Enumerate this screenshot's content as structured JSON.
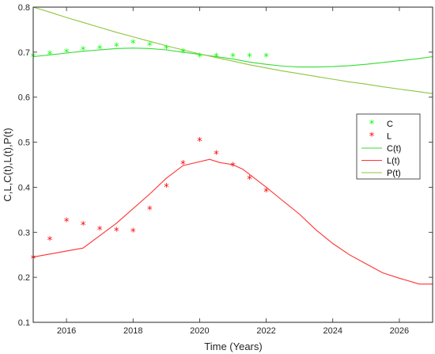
{
  "chart_data": {
    "type": "line",
    "title": "",
    "xlabel": "Time (Years)",
    "ylabel": "C,L,C(t),L(t),P(t)",
    "xlim": [
      2015,
      2027
    ],
    "ylim": [
      0.1,
      0.8
    ],
    "xticks": [
      2016,
      2018,
      2020,
      2022,
      2024,
      2026
    ],
    "yticks": [
      0.1,
      0.2,
      0.3,
      0.4,
      0.5,
      0.6,
      0.7,
      0.8
    ],
    "grid": false,
    "legend_position": "right",
    "series": [
      {
        "name": "C",
        "kind": "scatter",
        "marker": "*",
        "color": "#00ff00",
        "x": [
          2015,
          2015.5,
          2016,
          2016.5,
          2017,
          2017.5,
          2018,
          2018.5,
          2019,
          2019.5,
          2020,
          2020.5,
          2021,
          2021.5,
          2022
        ],
        "y": [
          0.69,
          0.695,
          0.7,
          0.705,
          0.708,
          0.713,
          0.72,
          0.715,
          0.708,
          0.7,
          0.69,
          0.69,
          0.69,
          0.69,
          0.69
        ]
      },
      {
        "name": "L",
        "kind": "scatter",
        "marker": "*",
        "color": "#ff0000",
        "x": [
          2015,
          2015.5,
          2016,
          2016.5,
          2017,
          2017.5,
          2018,
          2018.5,
          2019,
          2019.5,
          2020,
          2020.5,
          2021,
          2021.5,
          2022
        ],
        "y": [
          0.242,
          0.283,
          0.324,
          0.316,
          0.306,
          0.303,
          0.301,
          0.351,
          0.401,
          0.452,
          0.503,
          0.474,
          0.447,
          0.418,
          0.39
        ]
      },
      {
        "name": "C(t)",
        "kind": "line",
        "color": "#33dd33",
        "x": [
          2015,
          2015.5,
          2016,
          2016.5,
          2017,
          2017.5,
          2018,
          2018.5,
          2019,
          2019.5,
          2020,
          2020.5,
          2021,
          2021.5,
          2022,
          2022.5,
          2023,
          2023.5,
          2024,
          2024.5,
          2025,
          2025.5,
          2026,
          2026.5,
          2027
        ],
        "y": [
          0.69,
          0.694,
          0.698,
          0.702,
          0.705,
          0.708,
          0.709,
          0.708,
          0.705,
          0.7,
          0.695,
          0.69,
          0.685,
          0.678,
          0.673,
          0.669,
          0.667,
          0.667,
          0.668,
          0.67,
          0.673,
          0.677,
          0.681,
          0.685,
          0.69
        ]
      },
      {
        "name": "L(t)",
        "kind": "line",
        "color": "#ff3333",
        "x": [
          2015,
          2016.5,
          2017.5,
          2018.5,
          2019,
          2019.5,
          2020.3,
          2020.6,
          2021,
          2021.3,
          2022,
          2022.5,
          2023,
          2023.5,
          2024,
          2024.5,
          2025,
          2025.5,
          2026,
          2026.6,
          2027
        ],
        "y": [
          0.245,
          0.265,
          0.32,
          0.385,
          0.42,
          0.448,
          0.462,
          0.455,
          0.45,
          0.44,
          0.4,
          0.37,
          0.34,
          0.305,
          0.275,
          0.25,
          0.23,
          0.21,
          0.198,
          0.185,
          0.185
        ]
      },
      {
        "name": "P(t)",
        "kind": "line",
        "color": "#8ec63f",
        "x": [
          2015,
          2015.5,
          2016,
          2016.5,
          2017,
          2017.5,
          2018,
          2018.5,
          2019,
          2019.5,
          2020,
          2020.5,
          2021,
          2021.5,
          2022,
          2022.5,
          2023,
          2023.5,
          2024,
          2024.5,
          2025,
          2025.5,
          2026,
          2026.5,
          2027
        ],
        "y": [
          0.8,
          0.789,
          0.777,
          0.766,
          0.755,
          0.744,
          0.734,
          0.724,
          0.714,
          0.705,
          0.696,
          0.688,
          0.68,
          0.672,
          0.665,
          0.658,
          0.652,
          0.646,
          0.64,
          0.634,
          0.629,
          0.623,
          0.618,
          0.613,
          0.608
        ]
      }
    ]
  }
}
